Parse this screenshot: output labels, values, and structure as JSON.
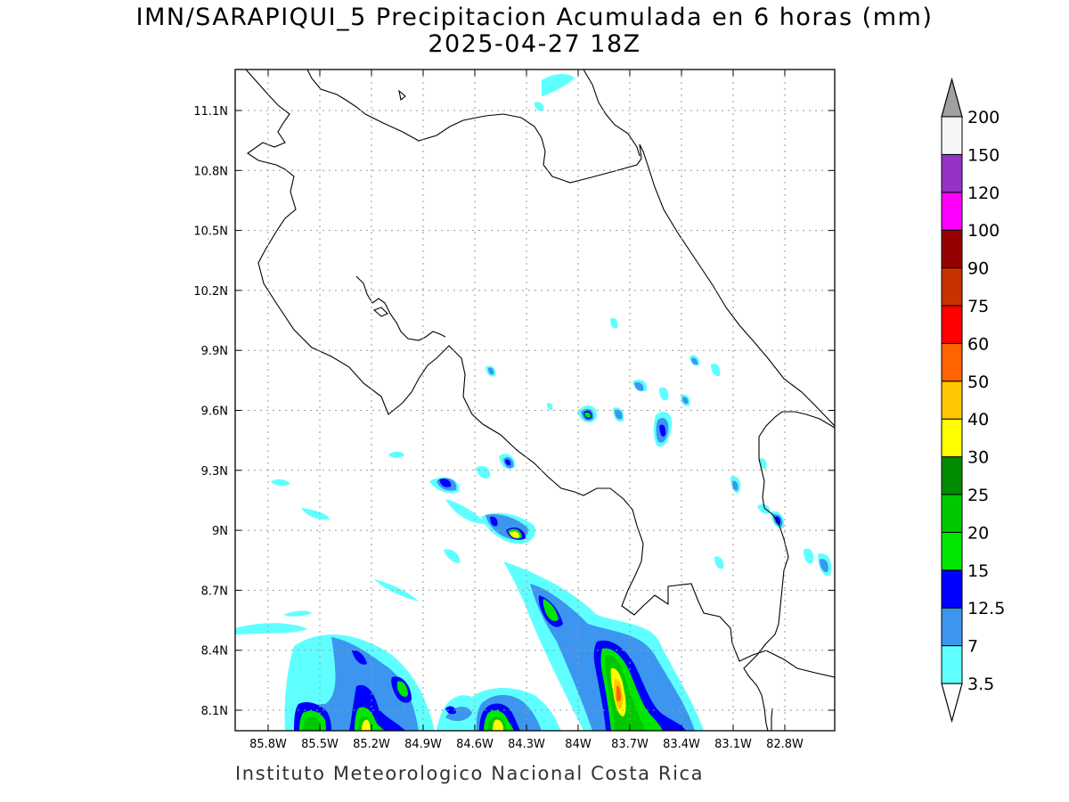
{
  "title": {
    "line1": "IMN/SARAPIQUI_5 Precipitacion Acumulada en 6 horas (mm)",
    "line2": "2025-04-27 18Z"
  },
  "footer": "Instituto Meteorologico Nacional Costa Rica",
  "map": {
    "lon_ticks": [
      "85.8W",
      "85.5W",
      "85.2W",
      "84.9W",
      "84.6W",
      "84.3W",
      "84W",
      "83.7W",
      "83.4W",
      "83.1W",
      "82.8W"
    ],
    "lat_ticks": [
      "11.1N",
      "10.8N",
      "10.5N",
      "10.2N",
      "9.9N",
      "9.6N",
      "9.3N",
      "9N",
      "8.7N",
      "8.4N",
      "8.1N"
    ],
    "lon_values": [
      -85.8,
      -85.5,
      -85.2,
      -84.9,
      -84.6,
      -84.3,
      -84.0,
      -83.7,
      -83.4,
      -83.1,
      -82.8
    ],
    "lat_values": [
      11.1,
      10.8,
      10.5,
      10.2,
      9.9,
      9.6,
      9.3,
      9.0,
      8.7,
      8.4,
      8.1
    ]
  },
  "colorbar": {
    "levels": [
      "3.5",
      "7",
      "12.5",
      "15",
      "20",
      "25",
      "30",
      "40",
      "50",
      "60",
      "75",
      "90",
      "100",
      "120",
      "150",
      "200"
    ],
    "colors": [
      "#60ffff",
      "#3c96f0",
      "#0000ff",
      "#00e600",
      "#00c800",
      "#008c00",
      "#ffff00",
      "#ffc800",
      "#ff6400",
      "#ff0000",
      "#c83200",
      "#960000",
      "#ff00ff",
      "#9632c8",
      "#f5f5f5"
    ],
    "under_color": "#ffffff",
    "over_color": "#a0a0a0"
  }
}
